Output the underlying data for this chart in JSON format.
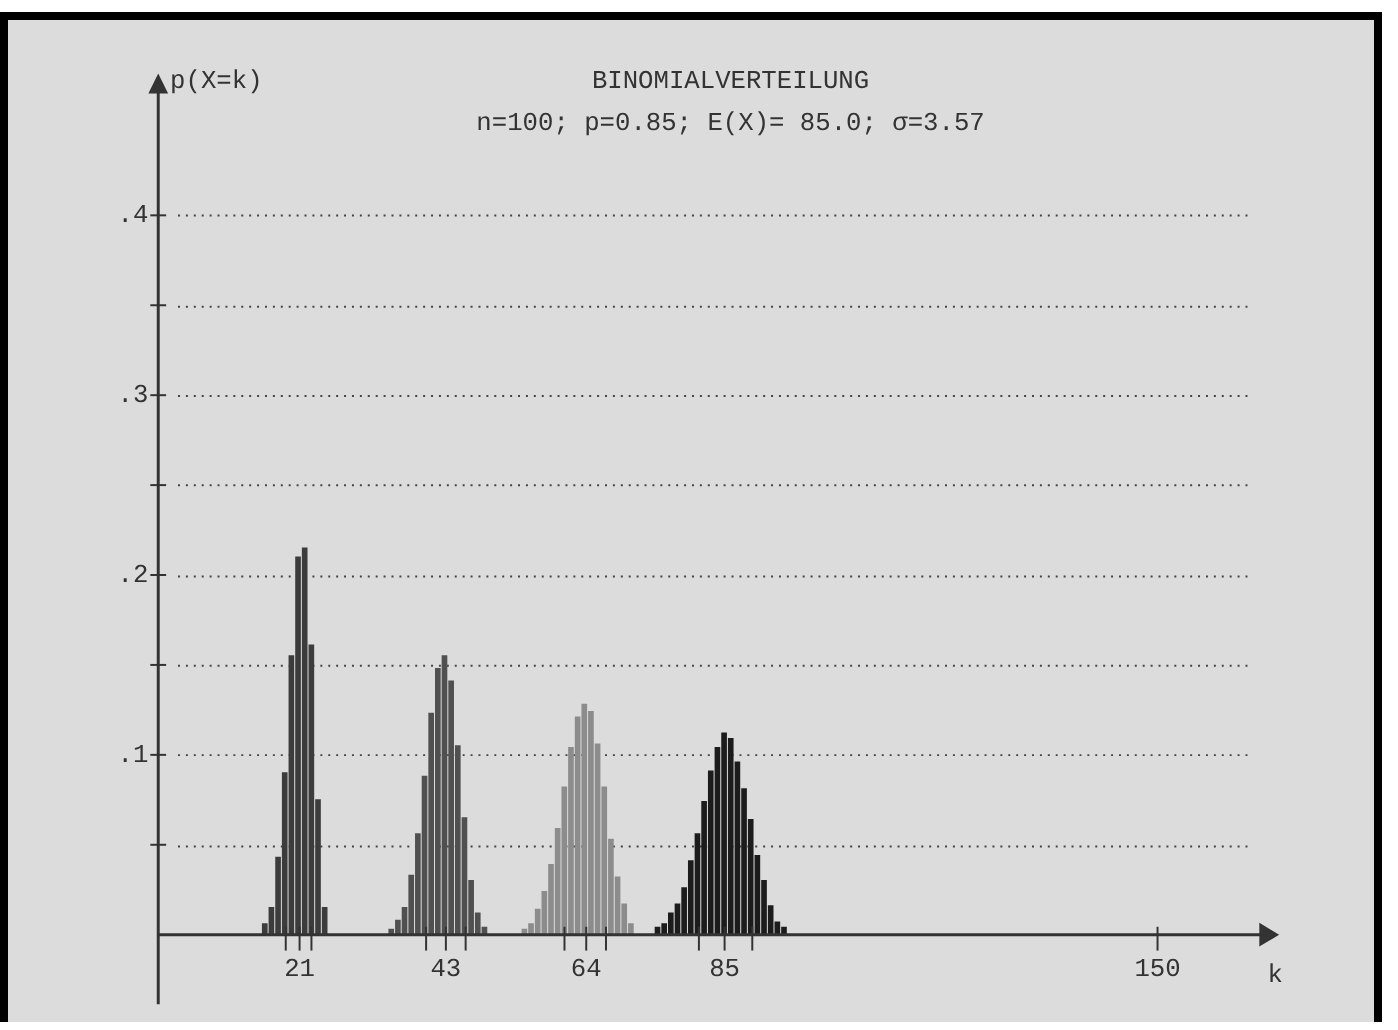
{
  "chart_data": {
    "type": "bar",
    "title": "BINOMIALVERTEILUNG",
    "subtitle": "n=100; p=0.85; E(X)= 85.0; σ=3.57",
    "xlabel": "k",
    "ylabel": "p(X=k)",
    "xlim": [
      0,
      166
    ],
    "ylim": [
      0,
      0.47
    ],
    "xticks": [
      {
        "value": 19,
        "label": null
      },
      {
        "value": 21,
        "label": "21"
      },
      {
        "value": 23,
        "label": null
      },
      {
        "value": 40,
        "label": null
      },
      {
        "value": 43,
        "label": "43"
      },
      {
        "value": 46,
        "label": null
      },
      {
        "value": 61,
        "label": null
      },
      {
        "value": 64,
        "label": "64"
      },
      {
        "value": 67,
        "label": null
      },
      {
        "value": 81,
        "label": null
      },
      {
        "value": 85,
        "label": "85"
      },
      {
        "value": 89,
        "label": null
      },
      {
        "value": 150,
        "label": "150"
      }
    ],
    "yticks": [
      {
        "value": 0.05,
        "label": null
      },
      {
        "value": 0.1,
        "label": ".1"
      },
      {
        "value": 0.15,
        "label": null
      },
      {
        "value": 0.2,
        "label": ".2"
      },
      {
        "value": 0.25,
        "label": null
      },
      {
        "value": 0.3,
        "label": ".3"
      },
      {
        "value": 0.35,
        "label": null
      },
      {
        "value": 0.4,
        "label": ".4"
      }
    ],
    "grid": "y",
    "legend": false,
    "series": [
      {
        "color": "#3c3c3c",
        "x": [
          16,
          17,
          18,
          19,
          20,
          21,
          22,
          23,
          24,
          25
        ],
        "values": [
          0.006,
          0.015,
          0.043,
          0.09,
          0.155,
          0.21,
          0.215,
          0.161,
          0.075,
          0.015
        ]
      },
      {
        "color": "#505050",
        "x": [
          35,
          36,
          37,
          38,
          39,
          40,
          41,
          42,
          43,
          44,
          45,
          46,
          47,
          48,
          49
        ],
        "values": [
          0.003,
          0.008,
          0.015,
          0.033,
          0.056,
          0.088,
          0.123,
          0.148,
          0.155,
          0.141,
          0.105,
          0.065,
          0.03,
          0.012,
          0.004
        ]
      },
      {
        "color": "#8c8c8c",
        "x": [
          55,
          56,
          57,
          58,
          59,
          60,
          61,
          62,
          63,
          64,
          65,
          66,
          67,
          68,
          69,
          70,
          71
        ],
        "values": [
          0.003,
          0.006,
          0.014,
          0.024,
          0.039,
          0.059,
          0.082,
          0.104,
          0.121,
          0.128,
          0.124,
          0.106,
          0.082,
          0.053,
          0.032,
          0.017,
          0.006
        ]
      },
      {
        "color": "#1c1c1c",
        "x": [
          75,
          76,
          77,
          78,
          79,
          80,
          81,
          82,
          83,
          84,
          85,
          86,
          87,
          88,
          89,
          90,
          91,
          92,
          93,
          94
        ],
        "values": [
          0.004,
          0.006,
          0.012,
          0.017,
          0.026,
          0.041,
          0.056,
          0.074,
          0.091,
          0.104,
          0.112,
          0.109,
          0.096,
          0.081,
          0.064,
          0.044,
          0.03,
          0.016,
          0.007,
          0.004
        ]
      }
    ]
  }
}
